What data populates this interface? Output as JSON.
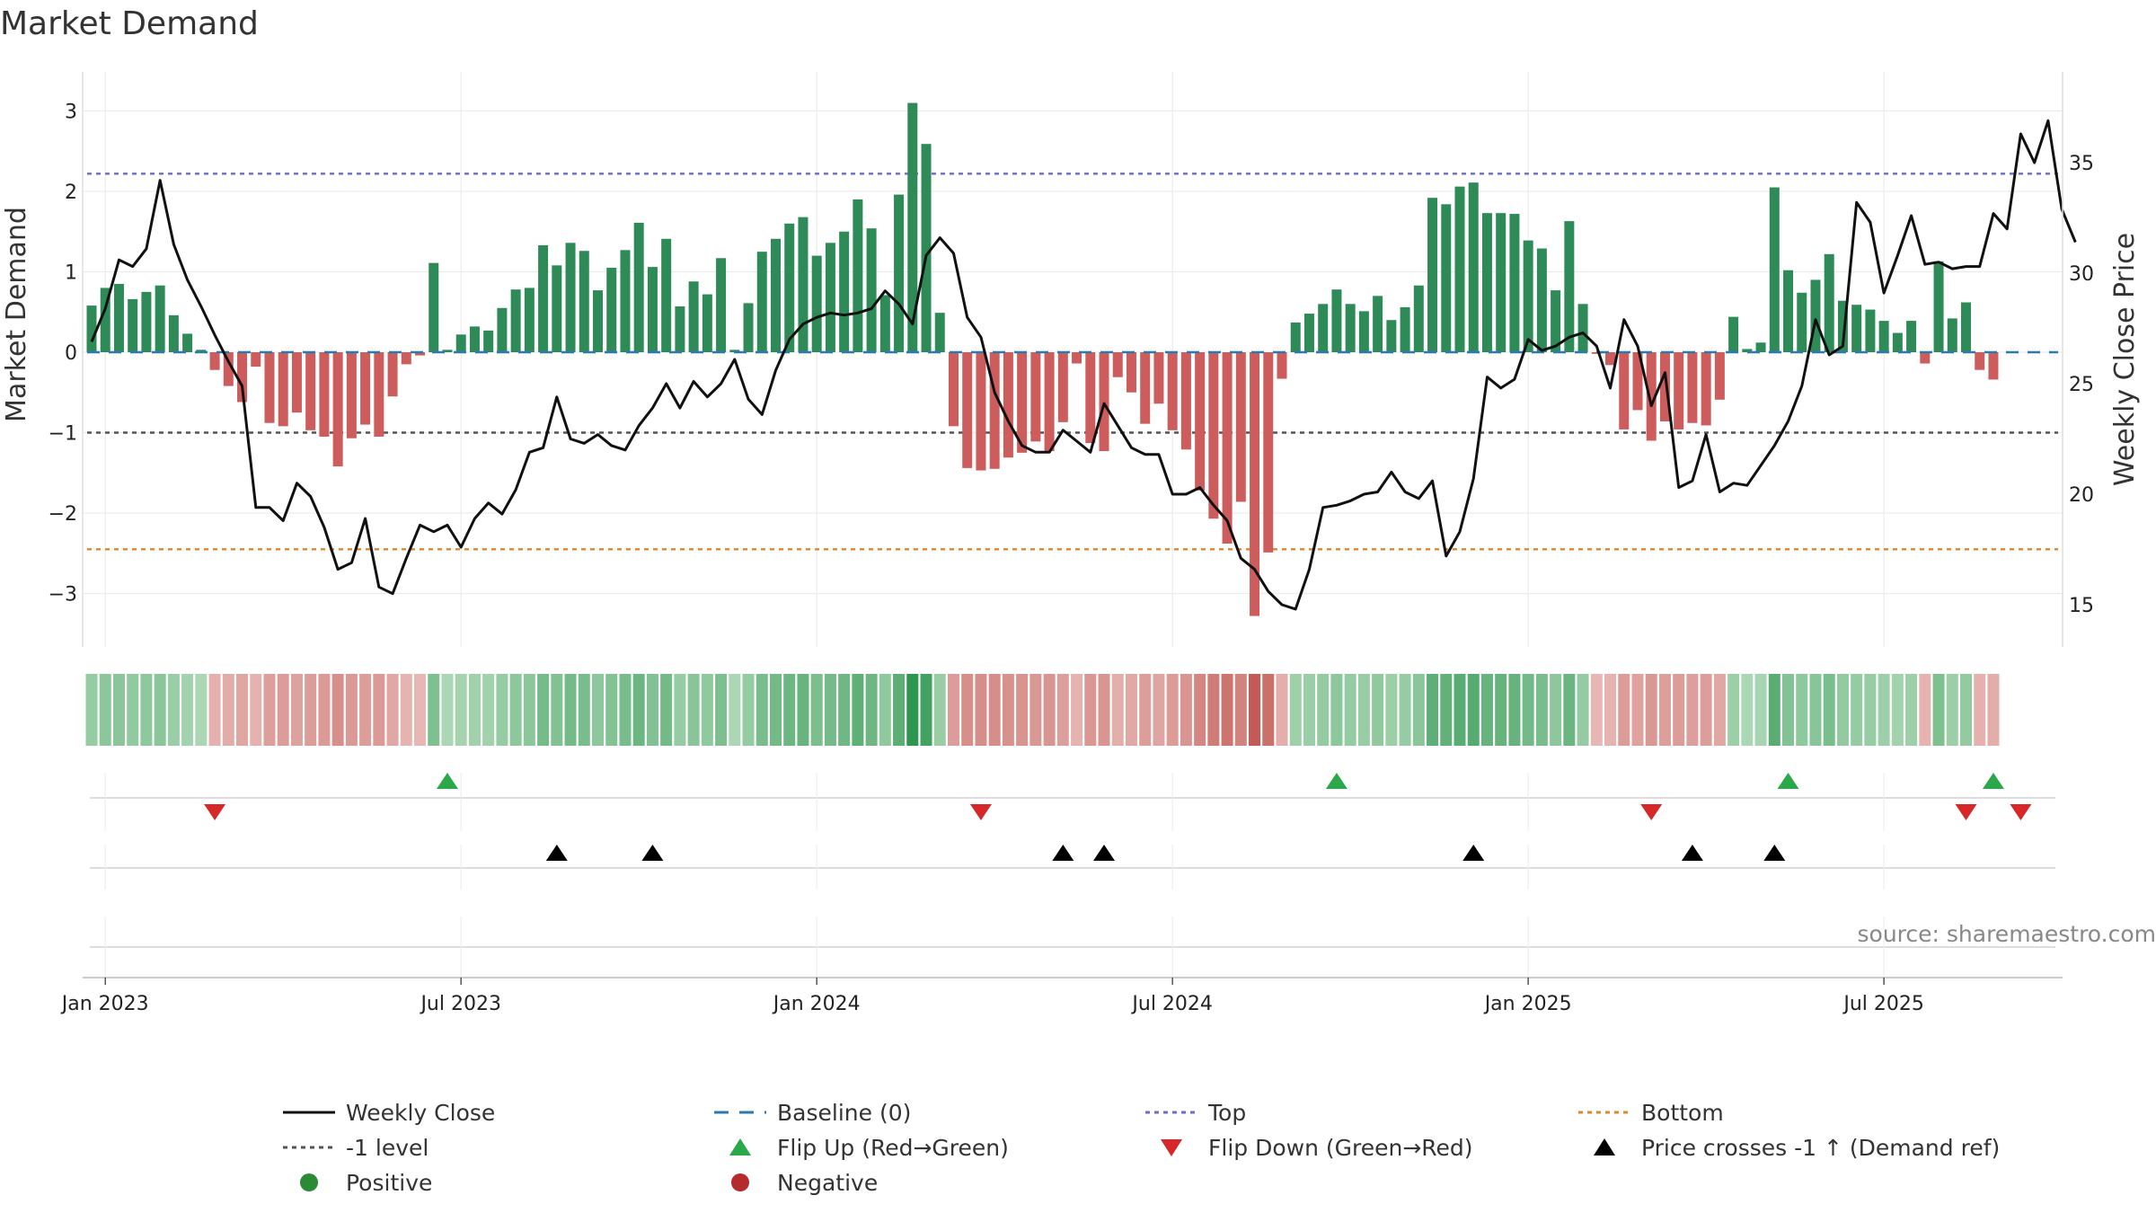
{
  "chart_data": {
    "type": "bar",
    "title": "Market Demand",
    "ylabel_left": "Market Demand",
    "ylabel_right": "Weekly Close Price",
    "ylim_left": [
      -3.6,
      3.5
    ],
    "ylim_right": [
      12.5,
      38.5
    ],
    "yticks_left": [
      3,
      2,
      1,
      0,
      -1,
      -2,
      -3
    ],
    "yticks_left_labels": [
      "3",
      "2",
      "1",
      "0",
      "−1",
      "−2",
      "−3"
    ],
    "yticks_right": [
      35,
      30,
      25,
      20,
      15
    ],
    "yticks_right_labels": [
      "35",
      "30",
      "25",
      "20",
      "15"
    ],
    "x_tick_labels": [
      "Jan 2023",
      "Jul 2023",
      "Jan 2024",
      "Jul 2024",
      "Jan 2025",
      "Jul 2025"
    ],
    "x_tick_weeks": [
      1,
      27,
      53,
      79,
      105,
      131
    ],
    "reference_levels": {
      "top": 2.22,
      "bottom": -2.45,
      "minus_one": -1.0,
      "baseline": 0
    },
    "demand": [
      0.58,
      0.8,
      0.85,
      0.66,
      0.75,
      0.83,
      0.46,
      0.23,
      0.03,
      -0.22,
      -0.42,
      -0.62,
      -0.18,
      -0.88,
      -0.92,
      -0.75,
      -0.97,
      -1.05,
      -1.42,
      -1.07,
      -0.9,
      -1.05,
      -0.55,
      -0.15,
      -0.04,
      1.11,
      0.03,
      0.22,
      0.32,
      0.27,
      0.55,
      0.78,
      0.8,
      1.33,
      1.08,
      1.36,
      1.26,
      0.77,
      1.05,
      1.27,
      1.61,
      1.06,
      1.41,
      0.57,
      0.88,
      0.72,
      1.17,
      0.03,
      0.61,
      1.25,
      1.41,
      1.6,
      1.68,
      1.2,
      1.36,
      1.5,
      1.9,
      1.54,
      0.71,
      1.96,
      3.1,
      2.59,
      0.49,
      -0.92,
      -1.44,
      -1.47,
      -1.45,
      -1.31,
      -1.25,
      -1.11,
      -1.23,
      -0.87,
      -0.14,
      -1.13,
      -1.23,
      -0.31,
      -0.5,
      -0.89,
      -0.64,
      -0.97,
      -1.21,
      -1.72,
      -2.07,
      -2.38,
      -1.86,
      -3.28,
      -2.49,
      -0.33,
      0.37,
      0.48,
      0.6,
      0.78,
      0.6,
      0.51,
      0.7,
      0.4,
      0.56,
      0.83,
      1.92,
      1.84,
      2.06,
      2.11,
      1.73,
      1.73,
      1.72,
      1.39,
      1.29,
      0.77,
      1.63,
      0.6,
      -0.02,
      -0.16,
      -0.96,
      -0.72,
      -1.1,
      -0.86,
      -0.96,
      -0.88,
      -0.91,
      -0.59,
      0.44,
      0.04,
      0.12,
      2.05,
      1.02,
      0.74,
      0.9,
      1.22,
      0.64,
      0.59,
      0.53,
      0.39,
      0.24,
      0.39,
      -0.14,
      1.13,
      0.42,
      0.62,
      -0.22,
      -0.34
    ],
    "price": [
      26.9,
      28.4,
      30.6,
      30.3,
      31.1,
      34.2,
      31.3,
      29.7,
      28.5,
      27.2,
      26.0,
      24.9,
      19.4,
      19.4,
      18.8,
      20.5,
      19.9,
      18.5,
      16.6,
      16.9,
      18.9,
      15.8,
      15.5,
      17.1,
      18.6,
      18.3,
      18.6,
      17.6,
      18.9,
      19.6,
      19.1,
      20.2,
      21.9,
      22.1,
      24.4,
      22.5,
      22.3,
      22.7,
      22.2,
      22.0,
      23.1,
      23.9,
      25.0,
      23.9,
      25.1,
      24.4,
      25.0,
      26.1,
      24.3,
      23.6,
      25.6,
      27.0,
      27.7,
      28.0,
      28.2,
      28.1,
      28.2,
      28.4,
      29.2,
      28.6,
      27.7,
      30.8,
      31.6,
      30.9,
      28.0,
      27.1,
      24.6,
      23.3,
      22.2,
      21.9,
      21.9,
      22.9,
      22.4,
      21.9,
      24.1,
      23.1,
      22.1,
      21.8,
      21.8,
      20.0,
      20.0,
      20.3,
      19.5,
      18.8,
      17.1,
      16.6,
      15.6,
      15.0,
      14.8,
      16.6,
      19.4,
      19.5,
      19.7,
      20.0,
      20.1,
      21.0,
      20.1,
      19.8,
      20.6,
      17.2,
      18.3,
      20.7,
      25.3,
      24.8,
      25.2,
      27.0,
      26.5,
      26.7,
      27.1,
      27.3,
      26.7,
      24.8,
      27.9,
      26.7,
      24.0,
      25.5,
      20.3,
      20.6,
      22.7,
      20.1,
      20.5,
      20.4,
      21.3,
      22.2,
      23.3,
      24.9,
      27.9,
      26.3,
      26.7,
      33.2,
      32.3,
      29.1,
      30.8,
      32.6,
      30.4,
      30.5,
      30.2,
      30.3,
      30.3,
      32.7,
      32.0,
      36.3,
      35.0,
      36.9,
      32.9,
      31.4
    ],
    "flip_up_weeks": [
      26,
      91,
      124,
      139
    ],
    "flip_down_weeks": [
      9,
      65,
      114,
      137,
      141
    ],
    "price_cross_weeks": [
      34,
      41,
      71,
      74,
      101,
      117,
      123
    ],
    "source_text": "source: sharemaestro.com",
    "legend": [
      {
        "label": "Weekly Close",
        "marker": "line-solid",
        "color": "#111111"
      },
      {
        "label": "Baseline (0)",
        "marker": "line-dash",
        "color": "#2a7ab0"
      },
      {
        "label": "Top",
        "marker": "line-dot",
        "color": "#6b6bd0"
      },
      {
        "label": "Bottom",
        "marker": "line-dot",
        "color": "#e0862a"
      },
      {
        "label": "-1 level",
        "marker": "line-dot",
        "color": "#555555"
      },
      {
        "label": "Flip Up (Red→Green)",
        "marker": "triangle-up",
        "color": "#2aa84a"
      },
      {
        "label": "Flip Down (Green→Red)",
        "marker": "triangle-down",
        "color": "#d62828"
      },
      {
        "label": "Price crosses -1 ↑ (Demand ref)",
        "marker": "triangle-up",
        "color": "#000000"
      },
      {
        "label": "Positive",
        "marker": "circle",
        "color": "#2a8a35"
      },
      {
        "label": "Negative",
        "marker": "circle",
        "color": "#b52a2a"
      }
    ],
    "colors": {
      "positive": "#2e8b57",
      "negative": "#cd5c5c",
      "price_line": "#111111",
      "top": "#6b6bd0",
      "bottom": "#e0862a",
      "minus_one": "#555555",
      "baseline": "#2a7ab0"
    }
  }
}
